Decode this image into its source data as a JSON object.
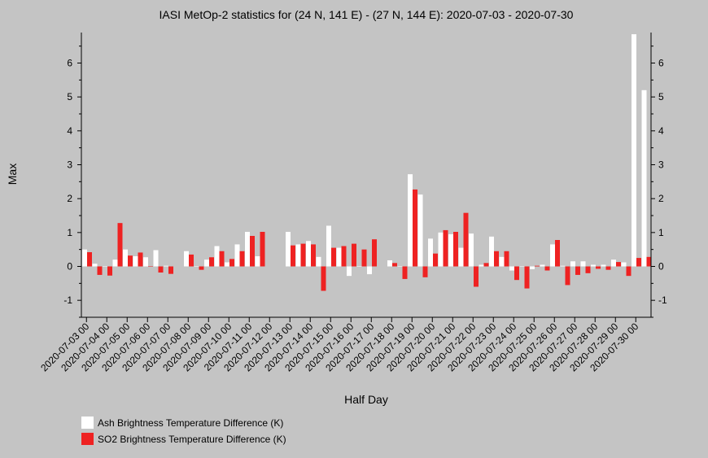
{
  "chart_data": {
    "type": "bar",
    "title": "IASI MetOp-2 statistics for (24 N, 141 E) - (27 N, 144 E): 2020-07-03 - 2020-07-30",
    "xlabel": "Half Day",
    "ylabel": "Max",
    "ylim": [
      -1.5,
      6.9
    ],
    "yticks": [
      -1,
      0,
      1,
      2,
      3,
      4,
      5,
      6
    ],
    "grid": false,
    "legend_position": "bottom-left",
    "categories": [
      "2020-07-03 00",
      "2020-07-03 12",
      "2020-07-04 00",
      "2020-07-04 12",
      "2020-07-05 00",
      "2020-07-05 12",
      "2020-07-06 00",
      "2020-07-06 12",
      "2020-07-07 00",
      "2020-07-07 12",
      "2020-07-08 00",
      "2020-07-08 12",
      "2020-07-09 00",
      "2020-07-09 12",
      "2020-07-10 00",
      "2020-07-10 12",
      "2020-07-11 00",
      "2020-07-11 12",
      "2020-07-12 00",
      "2020-07-12 12",
      "2020-07-13 00",
      "2020-07-13 12",
      "2020-07-14 00",
      "2020-07-14 12",
      "2020-07-15 00",
      "2020-07-15 12",
      "2020-07-16 00",
      "2020-07-16 12",
      "2020-07-17 00",
      "2020-07-17 12",
      "2020-07-18 00",
      "2020-07-18 12",
      "2020-07-19 00",
      "2020-07-19 12",
      "2020-07-20 00",
      "2020-07-20 12",
      "2020-07-21 00",
      "2020-07-21 12",
      "2020-07-22 00",
      "2020-07-22 12",
      "2020-07-23 00",
      "2020-07-23 12",
      "2020-07-24 00",
      "2020-07-24 12",
      "2020-07-25 00",
      "2020-07-25 12",
      "2020-07-26 00",
      "2020-07-26 12",
      "2020-07-27 00",
      "2020-07-27 12",
      "2020-07-28 00",
      "2020-07-28 12",
      "2020-07-29 00",
      "2020-07-29 12",
      "2020-07-30 00",
      "2020-07-30 12"
    ],
    "tick_labels": [
      "2020-07-03 00",
      "2020-07-04 00",
      "2020-07-05 00",
      "2020-07-06 00",
      "2020-07-07 00",
      "2020-07-08 00",
      "2020-07-09 00",
      "2020-07-10 00",
      "2020-07-11 00",
      "2020-07-12 00",
      "2020-07-13 00",
      "2020-07-14 00",
      "2020-07-15 00",
      "2020-07-16 00",
      "2020-07-17 00",
      "2020-07-18 00",
      "2020-07-19 00",
      "2020-07-20 00",
      "2020-07-21 00",
      "2020-07-22 00",
      "2020-07-23 00",
      "2020-07-24 00",
      "2020-07-25 00",
      "2020-07-26 00",
      "2020-07-27 00",
      "2020-07-28 00",
      "2020-07-29 00",
      "2020-07-30 00"
    ],
    "series": [
      {
        "name": "Ash Brightness Temperature Difference (K)",
        "color": "#ffffff",
        "values": [
          0.5,
          0.08,
          0.0,
          0.2,
          0.5,
          0.3,
          0.27,
          0.48,
          0.02,
          null,
          0.45,
          0.0,
          0.2,
          0.6,
          0.12,
          0.65,
          1.02,
          0.3,
          null,
          null,
          1.02,
          0.65,
          0.75,
          0.28,
          1.2,
          0.55,
          -0.28,
          0.0,
          -0.23,
          null,
          0.18,
          0.0,
          2.72,
          2.12,
          0.82,
          1.0,
          0.95,
          0.55,
          0.97,
          0.05,
          0.88,
          0.28,
          -0.12,
          0.0,
          -0.08,
          0.05,
          0.65,
          0.02,
          0.15,
          0.15,
          0.05,
          0.05,
          0.2,
          0.12,
          6.85,
          5.2
        ]
      },
      {
        "name": "SO2 Brightness Temperature Difference (K)",
        "color": "#ee2222",
        "values": [
          0.42,
          -0.25,
          -0.27,
          1.28,
          0.32,
          0.41,
          0.0,
          -0.18,
          -0.22,
          null,
          0.35,
          -0.1,
          0.27,
          0.45,
          0.22,
          0.45,
          0.9,
          1.02,
          null,
          null,
          0.62,
          0.67,
          0.65,
          -0.72,
          0.55,
          0.6,
          0.67,
          0.5,
          0.8,
          null,
          0.1,
          -0.37,
          2.27,
          -0.32,
          0.38,
          1.07,
          1.02,
          1.58,
          -0.6,
          0.1,
          0.45,
          0.45,
          -0.4,
          -0.65,
          0.02,
          -0.12,
          0.78,
          -0.55,
          -0.25,
          -0.2,
          -0.07,
          -0.1,
          0.13,
          -0.28,
          0.25,
          0.28
        ]
      }
    ]
  }
}
